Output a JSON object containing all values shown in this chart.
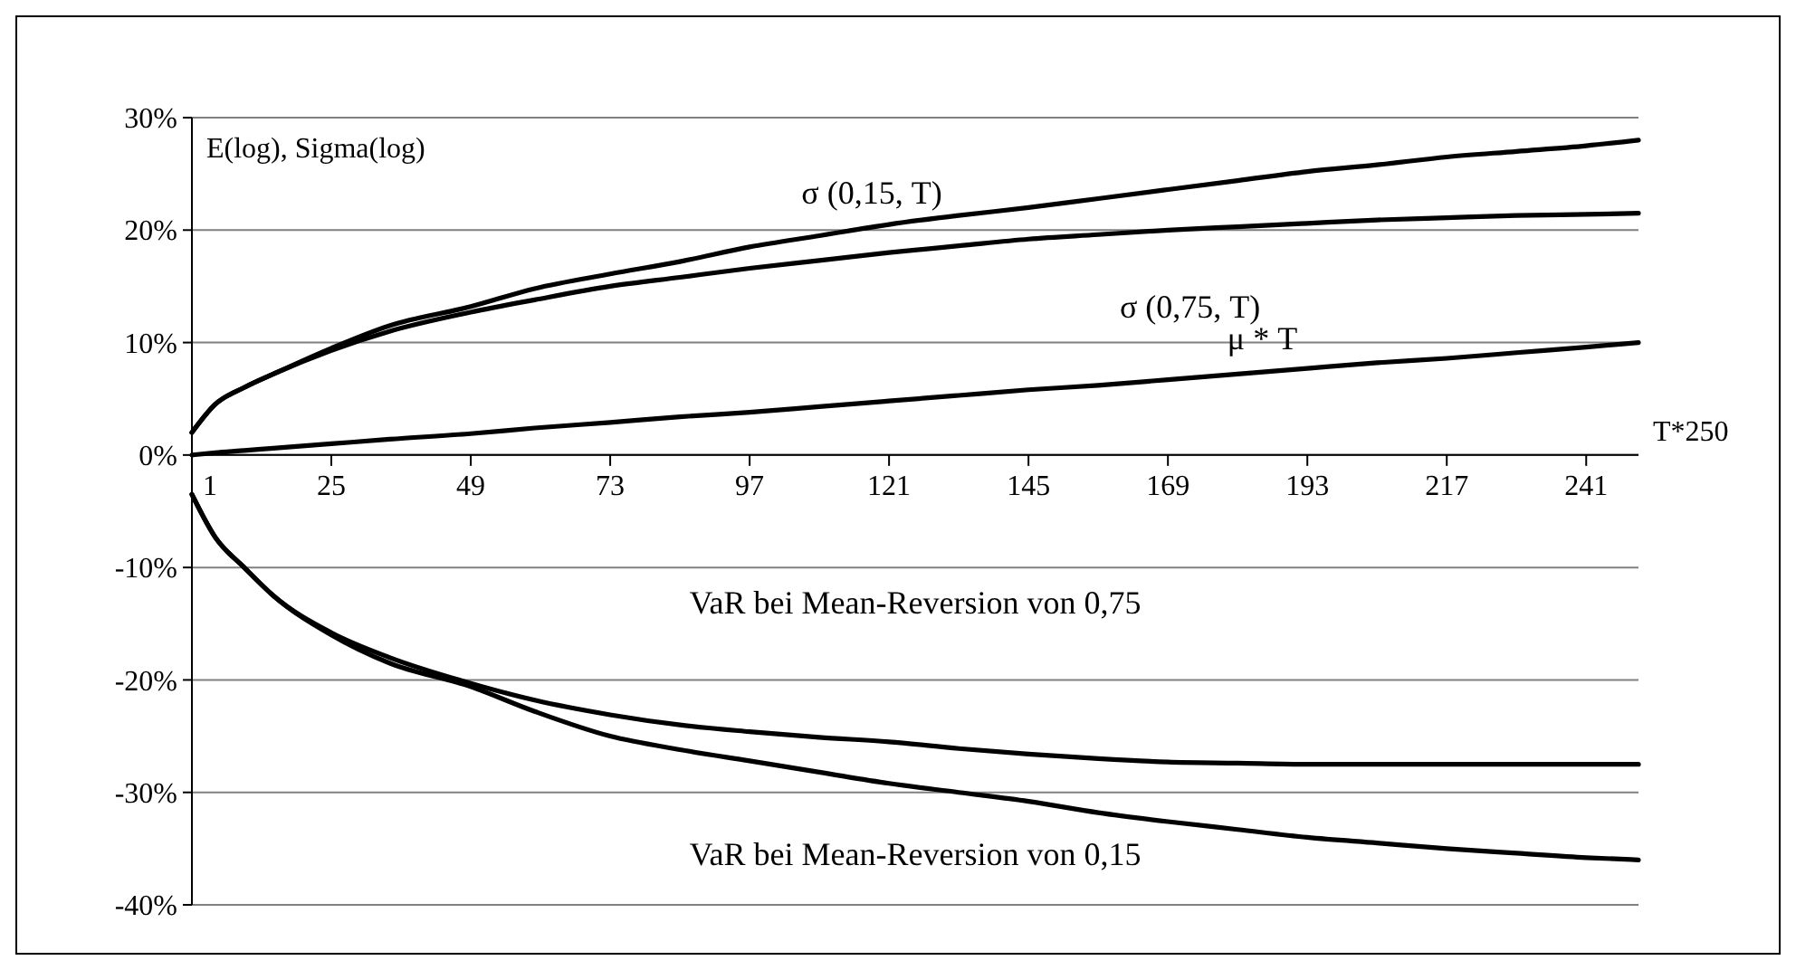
{
  "chart_data": {
    "type": "line",
    "ylabel": "E(log), Sigma(log)",
    "xlabel": "T*250",
    "xlim": [
      1,
      250
    ],
    "xticks": [
      1,
      25,
      49,
      73,
      97,
      121,
      145,
      169,
      193,
      217,
      241
    ],
    "ylim": [
      -40,
      30
    ],
    "yticks": [
      {
        "value": -40,
        "label": "-40%"
      },
      {
        "value": -30,
        "label": "-30%"
      },
      {
        "value": -20,
        "label": "-20%"
      },
      {
        "value": -10,
        "label": "-10%"
      },
      {
        "value": 0,
        "label": "0%"
      },
      {
        "value": 10,
        "label": "10%"
      },
      {
        "value": 20,
        "label": "20%"
      },
      {
        "value": 30,
        "label": "30%"
      }
    ],
    "grid": "y",
    "marker": "none",
    "line_style": "solid",
    "x": [
      1,
      5,
      10,
      15,
      25,
      35,
      49,
      60,
      73,
      85,
      97,
      109,
      121,
      133,
      145,
      157,
      169,
      181,
      193,
      205,
      217,
      229,
      241,
      250
    ],
    "series": [
      {
        "color": "#000000",
        "values": [
          2,
          4.5,
          6,
          7.2,
          9.5,
          11.5,
          13.2,
          14.8,
          16.1,
          17.2,
          18.5,
          19.5,
          20.5,
          21.3,
          22,
          22.8,
          23.6,
          24.4,
          25.2,
          25.8,
          26.5,
          27,
          27.5,
          28
        ]
      },
      {
        "color": "#000000",
        "values": [
          2,
          4.5,
          6,
          7.2,
          9.3,
          11,
          12.7,
          13.8,
          15,
          15.8,
          16.6,
          17.3,
          18,
          18.6,
          19.2,
          19.6,
          20,
          20.3,
          20.6,
          20.9,
          21.1,
          21.3,
          21.4,
          21.5
        ]
      },
      {
        "color": "#000000",
        "values": [
          0,
          0.2,
          0.4,
          0.6,
          1,
          1.4,
          1.9,
          2.4,
          2.9,
          3.4,
          3.8,
          4.3,
          4.8,
          5.3,
          5.8,
          6.2,
          6.7,
          7.2,
          7.7,
          8.2,
          8.6,
          9.1,
          9.6,
          10
        ]
      },
      {
        "color": "#000000",
        "values": [
          -3.5,
          -7.3,
          -10,
          -12.5,
          -15.8,
          -18,
          -20.3,
          -21.8,
          -23.1,
          -24,
          -24.6,
          -25.1,
          -25.5,
          -26.1,
          -26.6,
          -27,
          -27.3,
          -27.4,
          -27.5,
          -27.5,
          -27.5,
          -27.5,
          -27.5,
          -27.5
        ]
      },
      {
        "color": "#000000",
        "values": [
          -3.5,
          -7.3,
          -10,
          -12.5,
          -16,
          -18.5,
          -20.6,
          -22.8,
          -25,
          -26.2,
          -27.2,
          -28.2,
          -29.2,
          -30,
          -30.8,
          -31.8,
          -32.6,
          -33.3,
          -34,
          -34.5,
          -35,
          -35.4,
          -35.8,
          -36
        ]
      }
    ],
    "annotations": [
      "σ (0,15, T)",
      "σ (0,75, T)",
      "μ * T",
      "VaR bei Mean-Reversion von 0,75",
      "VaR bei Mean-Reversion von 0,15"
    ]
  }
}
